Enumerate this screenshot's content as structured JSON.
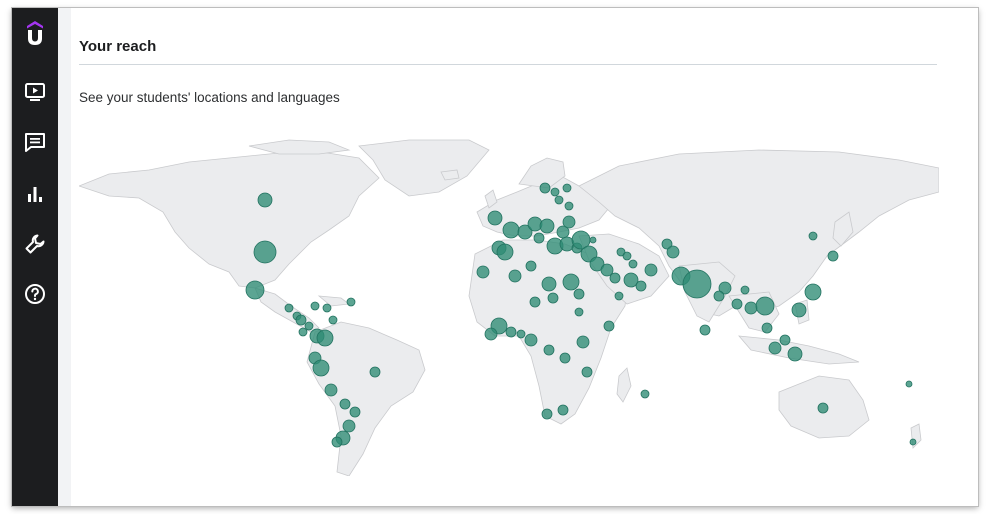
{
  "app": {
    "brand_color": "#a435f0",
    "sidebar_bg": "#1c1d1f",
    "accent_color": "#2e8c74"
  },
  "sidebar": {
    "items": [
      {
        "icon": "course-video-icon"
      },
      {
        "icon": "communication-icon"
      },
      {
        "icon": "performance-chart-icon"
      },
      {
        "icon": "tools-icon"
      },
      {
        "icon": "help-icon"
      }
    ]
  },
  "page": {
    "title": "Your reach",
    "subtitle": "See your students' locations and languages"
  }
}
